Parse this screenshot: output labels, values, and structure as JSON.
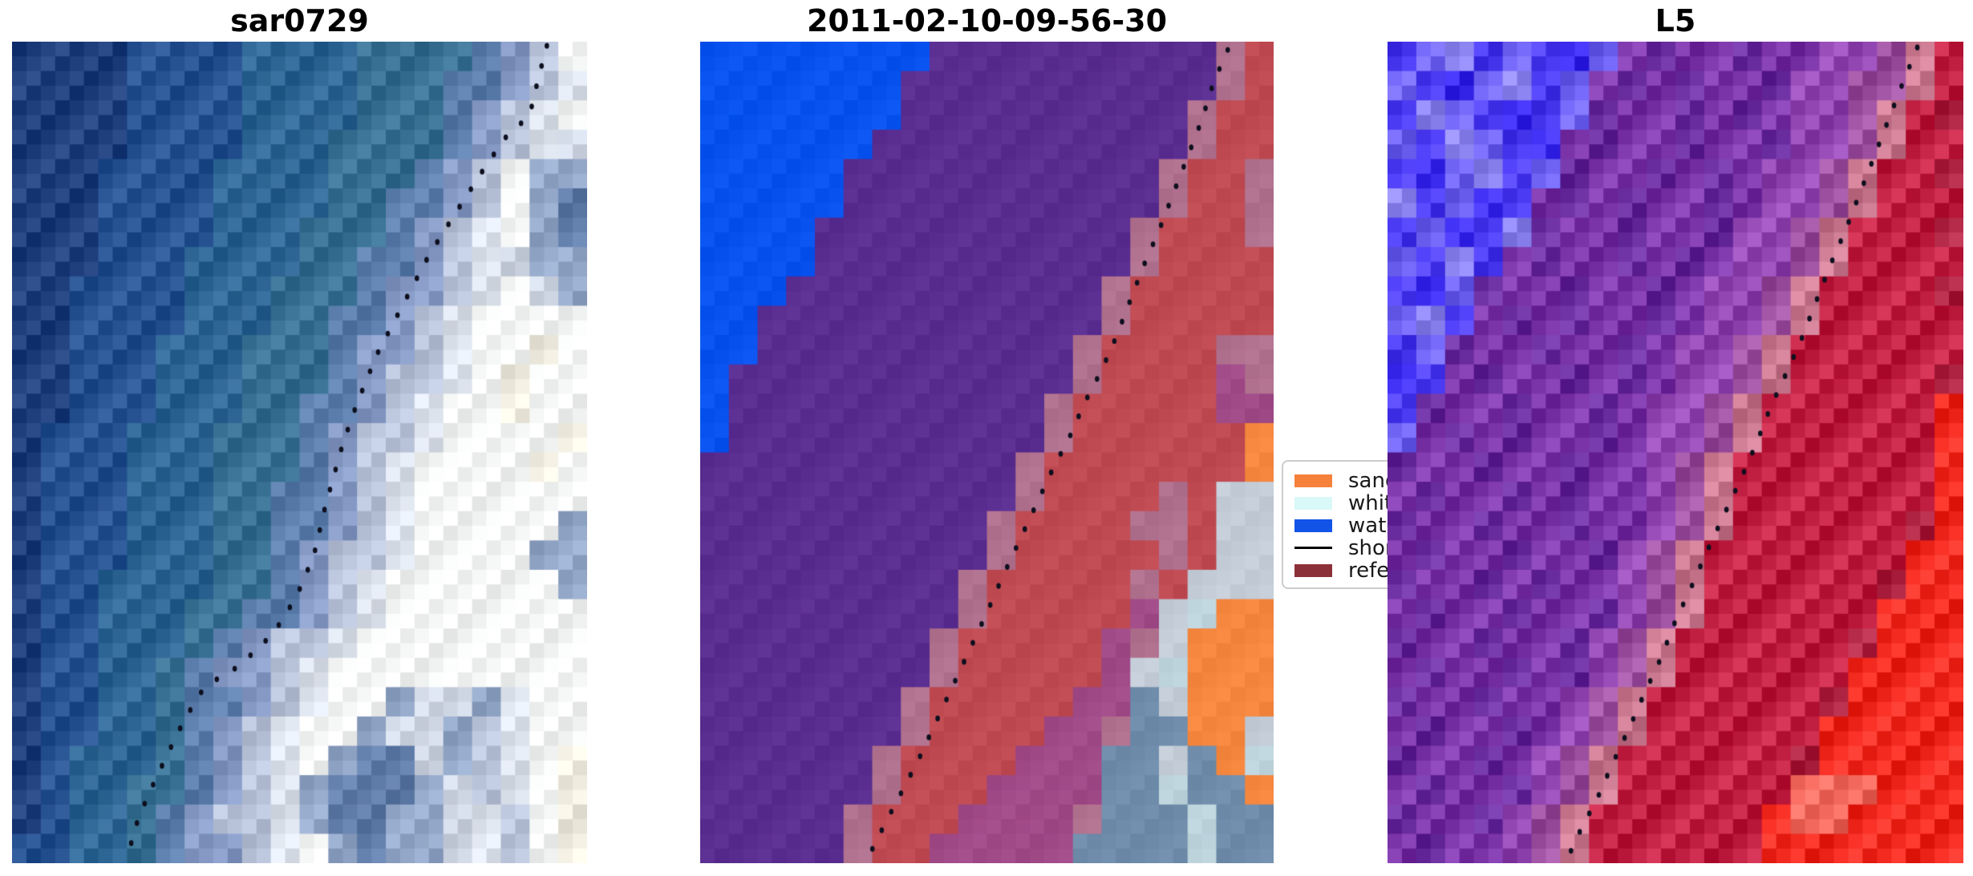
{
  "figure": {
    "background": "#ffffff",
    "shoreline_dot_color": "#0d0f1e"
  },
  "chart_data": {
    "type": "image",
    "description": "Three-panel satellite shoreline-detection figure: SAR RGB image, classified map, Landsat-5 false color; dotted shoreline overlaid on each.",
    "legend": {
      "entries": [
        {
          "label": "sand",
          "color": "#f5813b",
          "kind": "patch"
        },
        {
          "label": "whitewater",
          "color": "#d9f8f8",
          "kind": "patch"
        },
        {
          "label": "water",
          "color": "#1254e8",
          "kind": "patch"
        },
        {
          "label": "shoreline",
          "color": "#000000",
          "kind": "line"
        },
        {
          "label": "reference",
          "color": "#8b3038",
          "kind": "patch"
        }
      ]
    },
    "panels": [
      {
        "title": "sar0729",
        "noise": 6,
        "palette": {
          "a": "#1f3e7c",
          "b": "#275292",
          "c": "#2d6594",
          "d": "#377092",
          "e": "#5a7dab",
          "f": "#8599c4",
          "g": "#b8c3da",
          "h": "#dde3ec",
          "i": "#f6f8f7",
          "j": "#efecdf",
          "k": "#5f7ba8",
          "l": "#93a7c8",
          "m": "#cfd6e3"
        },
        "rows": [
          "aaaabbbbccccddddefgi",
          "aaaabbbbccccdddeefgh",
          "aaaabbbbccccdddefghi",
          "aaaabbbbcccddddefghm",
          "aaabbbbccccdddefgill",
          "aaabbbbccccddeefgilk",
          "aaabbbbcccdddefghilk",
          "aaabbbccccddeefghmll",
          "aabbbbcccdddeffghiml",
          "aabbbbcccddeefghiiii",
          "aabbbcccdddeffghiiji",
          "aabbbcccdddefgghijii",
          "aabbbcccddeefghiijii",
          "abbbcccdddefgghiiiij",
          "abbbcccdddefghiiiiji",
          "abbbcccddeefghiiiiii",
          "abbbcccddeefghiiiiil",
          "abbbcccddefgghiiiill",
          "abbccccddefghiiiiiil",
          "abbcccddeefghiiiiiii",
          "abbcccdefgghiiiiiiii",
          "abbccdeffghiiiiiiiii",
          "abbccdeefghiilmmlhii",
          "abbccdefghiilmmlghii",
          "abcccdefghilkkmlghij",
          "abccddefghlkkklmghij",
          "abccdefgghlkkllmhgij",
          "bbccdeffghilkllmhgij"
        ],
        "shoreline": [
          [
            0.93,
            0.005
          ],
          [
            0.915,
            0.045
          ],
          [
            0.9,
            0.09
          ],
          [
            0.86,
            0.115
          ],
          [
            0.825,
            0.15
          ],
          [
            0.77,
            0.21
          ],
          [
            0.725,
            0.26
          ],
          [
            0.68,
            0.32
          ],
          [
            0.635,
            0.38
          ],
          [
            0.6,
            0.44
          ],
          [
            0.575,
            0.49
          ],
          [
            0.545,
            0.565
          ],
          [
            0.525,
            0.625
          ],
          [
            0.495,
            0.675
          ],
          [
            0.455,
            0.72
          ],
          [
            0.395,
            0.76
          ],
          [
            0.335,
            0.785
          ],
          [
            0.3,
            0.825
          ],
          [
            0.265,
            0.875
          ],
          [
            0.235,
            0.92
          ],
          [
            0.215,
            0.955
          ],
          [
            0.2,
            0.995
          ]
        ]
      },
      {
        "title": "2011-02-10-09-56-30",
        "noise": 2,
        "palette": {
          "B": "#0853f0",
          "P": "#5a2d90",
          "R": "#bf4a52",
          "M": "#b0718e",
          "N": "#a04a88",
          "O": "#f5873f",
          "G": "#c3ccd7",
          "S": "#6f8cab",
          "L": "#bdd3dc"
        },
        "rows": [
          "BBBBBBBBPPPPPPPPPPMR",
          "BBBBBBBPPPPPPPPPPPMR",
          "BBBBBBBPPPPPPPPPPMRR",
          "BBBBBBPPPPPPPPPPPMRR",
          "BBBBBPPPPPPPPPPPMRRM",
          "BBBBBPPPPPPPPPPPMRRM",
          "BBBBPPPPPPPPPPPMRRRM",
          "BBBBPPPPPPPPPPPMRRRR",
          "BBBPPPPPPPPPPPMRRRRR",
          "BBPPPPPPPPPPPPMRRRRR",
          "BBPPPPPPPPPPPMRRRRMM",
          "BPPPPPPPPPPPPMRRRRNM",
          "BPPPPPPPPPPPMRRRRRNN",
          "BPPPPPPPPPPPMRRRRRRO",
          "PPPPPPPPPPPMRRRRRRRO",
          "PPPPPPPPPPPMRRRRMRGG",
          "PPPPPPPPPPMRRRRMMRGG",
          "PPPPPPPPPPMRRRRRMRGG",
          "PPPPPPPPPMRRRRRMRGGG",
          "PPPPPPPPPMRRRRRNGLOO",
          "PPPPPPPPMRRRRRNMGOOO",
          "PPPPPPPPMRRRRRNGLOOO",
          "PPPPPPPMRRRRRNNSGOOO",
          "PPPPPPPMRRRRNNMSSOOG",
          "PPPPPPMRRRRNNNSSGSOL",
          "PPPPPPMRRRNNNNSSLSSO",
          "PPPPPMRRRNNNNMSSSLSS",
          "PPPPPMRRNNNNNSSSSLSS"
        ],
        "shoreline": [
          [
            0.92,
            0.01
          ],
          [
            0.895,
            0.05
          ],
          [
            0.875,
            0.095
          ],
          [
            0.85,
            0.14
          ],
          [
            0.825,
            0.185
          ],
          [
            0.8,
            0.23
          ],
          [
            0.775,
            0.27
          ],
          [
            0.75,
            0.315
          ],
          [
            0.725,
            0.36
          ],
          [
            0.7,
            0.4
          ],
          [
            0.67,
            0.44
          ],
          [
            0.645,
            0.48
          ],
          [
            0.615,
            0.52
          ],
          [
            0.585,
            0.565
          ],
          [
            0.555,
            0.61
          ],
          [
            0.525,
            0.655
          ],
          [
            0.5,
            0.695
          ],
          [
            0.47,
            0.74
          ],
          [
            0.44,
            0.785
          ],
          [
            0.41,
            0.83
          ],
          [
            0.38,
            0.875
          ],
          [
            0.35,
            0.915
          ],
          [
            0.32,
            0.955
          ],
          [
            0.295,
            0.99
          ]
        ]
      },
      {
        "title": "L5",
        "noise": 8,
        "palette": {
          "U": "#4b3bf2",
          "V": "#6f63f4",
          "W": "#8d85f2",
          "X": "#3b2bee",
          "p": "#7b33a8",
          "q": "#692c9e",
          "o": "#9146b2",
          "m": "#9d4f9f",
          "K": "#c9788f",
          "C": "#c11f41",
          "E": "#ae2342",
          "F": "#f22a1f",
          "H": "#f2685c"
        },
        "rows": [
          "UVWUVUXVpqppqppoomKC",
          "VUXVWUVpqpqppqoommKC",
          "UWVUXUVqppqpqpoomKCE",
          "VUWVUXpqppqppqoomKCC",
          "UXVWUVqppqpqpoomKCCE",
          "WUVXUpqpqppqpoomKCCC",
          "UVXUWqppqppqoomKCCCE",
          "VUWUpqppqpqpoomKCCCC",
          "UXVqppqppqpoomKCCCCE",
          "VWUpqpqppqpoomKCCCCC",
          "UVqppqppqpoomKCCCCCC",
          "XUpqppqpqpoomKCCCCCE",
          "UqppqppqpoomKCCCCCCF",
          "VpqpqppqpoomKCCCCCCF",
          "qppqppqppomKCCCCCCCF",
          "pqppqpqppomKCCCCCCCF",
          "qppqppqppomKCCCCCCEF",
          "pqppqppqomKCCCCCCCFF",
          "qppqpqppomKCCCCCCEFF",
          "pqppqppqomKCCCCCCFFF",
          "qppqppqomKCCCCCCEFFF",
          "pqppqpqomKCCCCCCFFFF",
          "qppqppomKCCCCCCEFFFF",
          "pqppqpomKCCCCCCFFFFF",
          "qppqpomKCCCCCCEFFFFF",
          "pqppqomKCCCCCCHHHFFF",
          "qppqomKCCCCCCFHHFFFF",
          "pqppomKCCCCCCFFFFFFF"
        ],
        "shoreline": [
          [
            0.92,
            0.007
          ],
          [
            0.895,
            0.05
          ],
          [
            0.87,
            0.095
          ],
          [
            0.845,
            0.14
          ],
          [
            0.82,
            0.185
          ],
          [
            0.795,
            0.23
          ],
          [
            0.77,
            0.27
          ],
          [
            0.745,
            0.315
          ],
          [
            0.72,
            0.36
          ],
          [
            0.695,
            0.4
          ],
          [
            0.665,
            0.445
          ],
          [
            0.64,
            0.49
          ],
          [
            0.615,
            0.53
          ],
          [
            0.585,
            0.575
          ],
          [
            0.555,
            0.62
          ],
          [
            0.53,
            0.66
          ],
          [
            0.5,
            0.705
          ],
          [
            0.475,
            0.75
          ],
          [
            0.445,
            0.795
          ],
          [
            0.42,
            0.835
          ],
          [
            0.39,
            0.88
          ],
          [
            0.365,
            0.92
          ],
          [
            0.335,
            0.96
          ],
          [
            0.31,
            0.998
          ]
        ]
      }
    ]
  }
}
